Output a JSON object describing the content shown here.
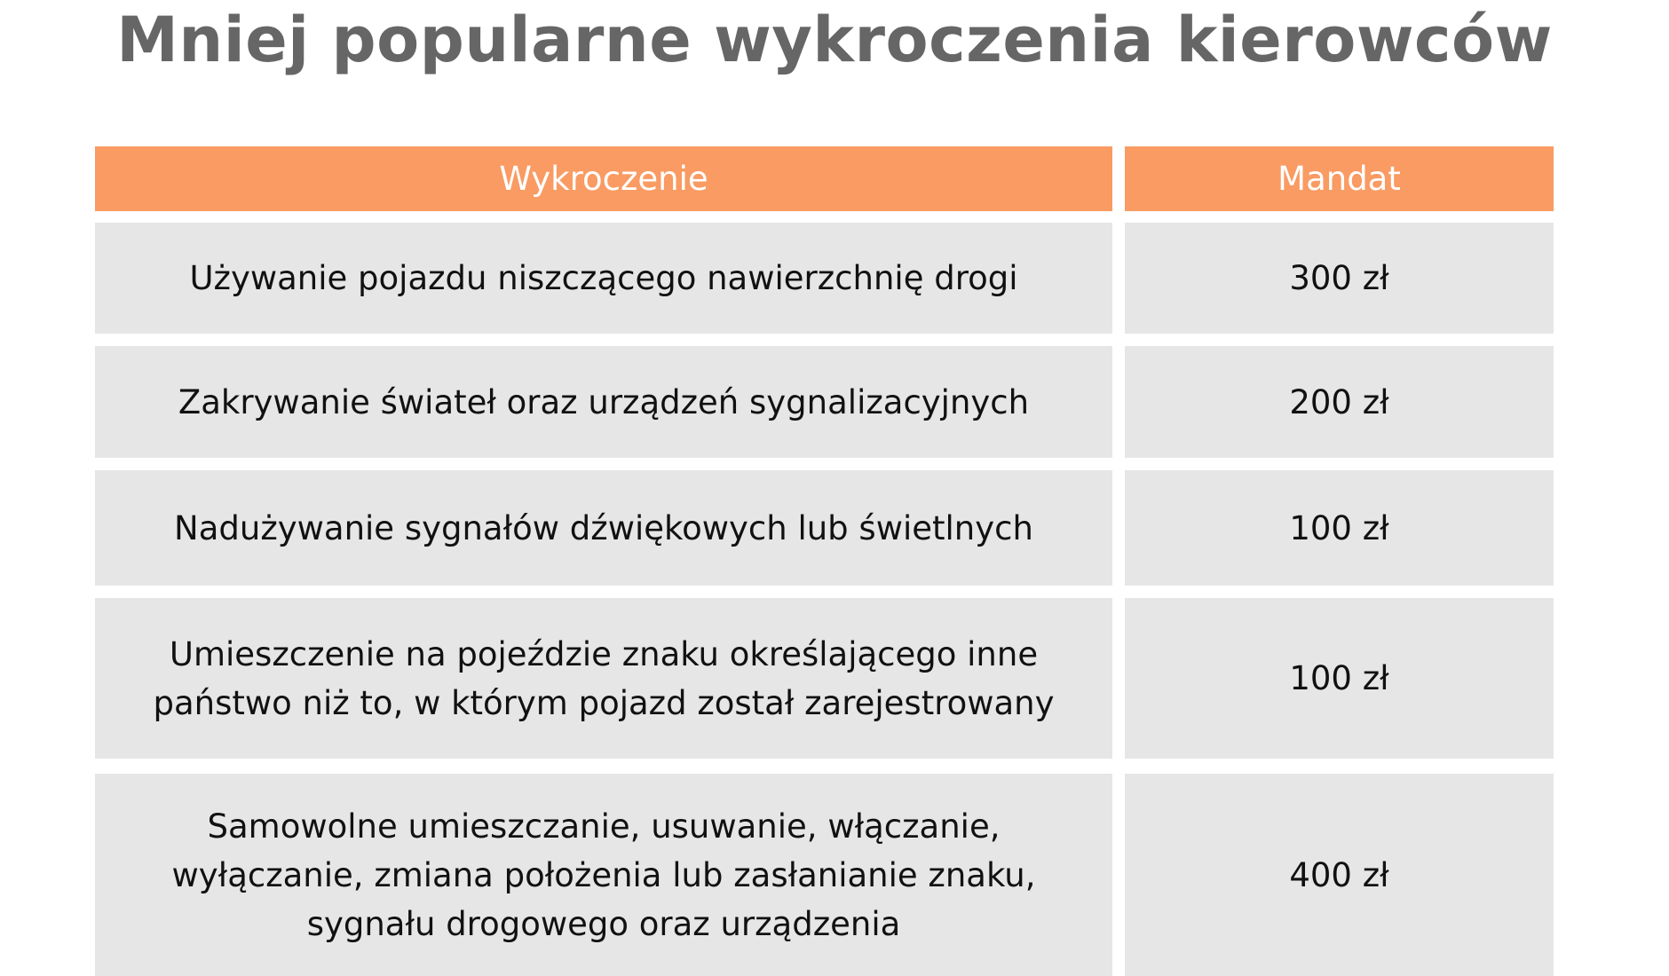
{
  "title": "Mniej popularne wykroczenia kierowców",
  "table": {
    "header": [
      "Wykroczenie",
      "Mandat"
    ],
    "rows": [
      [
        "Używanie pojazdu niszczącego nawierzchnię drogi",
        "300 zł"
      ],
      [
        "Zakrywanie świateł oraz urządzeń sygnalizacyjnych",
        "200 zł"
      ],
      [
        "Nadużywanie sygnałów dźwiękowych lub świetlnych",
        "100 zł"
      ],
      [
        "Umieszczenie na pojeździe znaku określającego inne państwo niż to, w którym pojazd został zarejestrowany",
        "100 zł"
      ],
      [
        "Samowolne umieszczanie, usuwanie, włączanie, wyłączanie, zmiana położenia lub zasłanianie znaku, sygnału drogowego oraz urządzenia",
        "400 zł"
      ]
    ]
  }
}
